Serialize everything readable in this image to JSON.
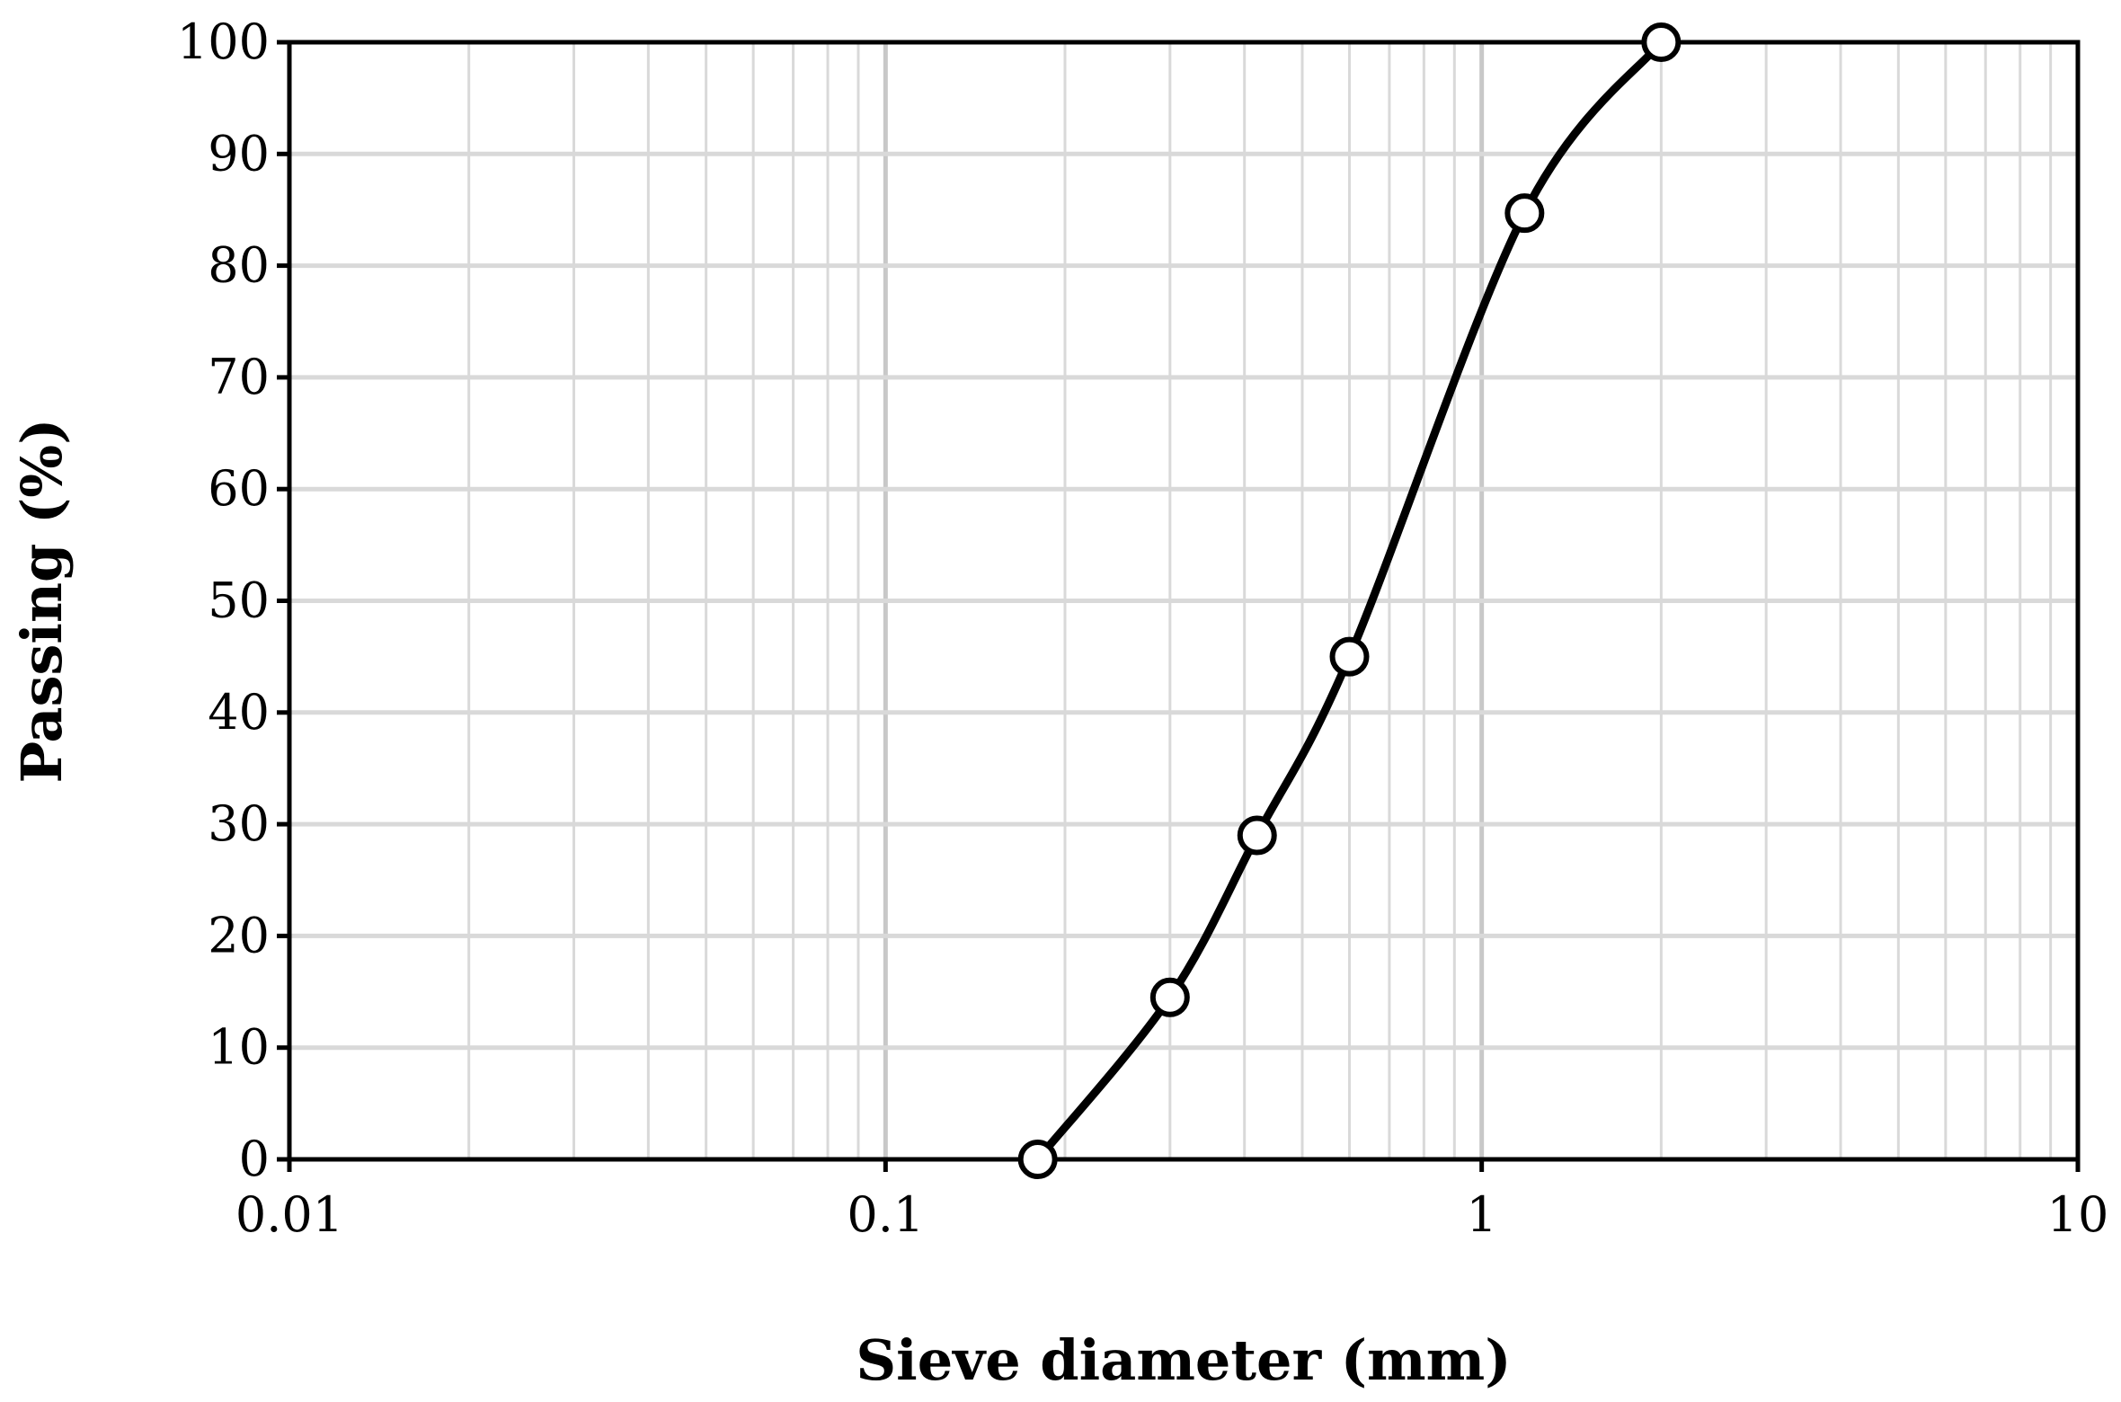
{
  "chart_data": {
    "type": "scatter",
    "title": "",
    "xlabel": "Sieve diameter (mm)",
    "ylabel": "Passing (%)",
    "x_scale": "log",
    "xlim": [
      0.01,
      10
    ],
    "ylim": [
      0,
      100
    ],
    "grid": true,
    "legend": "none",
    "x_tick_labels": [
      "0.01",
      "0.1",
      "1",
      "10"
    ],
    "y_tick_labels": [
      "0",
      "10",
      "20",
      "30",
      "40",
      "50",
      "60",
      "70",
      "80",
      "90",
      "100"
    ],
    "series": [
      {
        "x": [
          0.18,
          0.3,
          0.42,
          0.6,
          1.18,
          2.0
        ],
        "y": [
          0,
          14.5,
          29,
          45,
          84.7,
          100
        ],
        "line": "smooth",
        "marker": "open-circle",
        "color": "#000000"
      }
    ],
    "colors": {
      "grid": "#d9d9d9",
      "axis": "#000000",
      "marker_fill": "#ffffff"
    }
  }
}
